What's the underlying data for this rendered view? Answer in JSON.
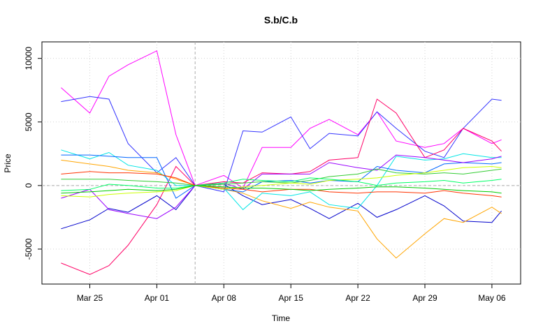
{
  "chart_data": {
    "type": "line",
    "title": "S.b/C.b",
    "x_label": "Time",
    "y_label": "Price",
    "x": [
      "Mar 22",
      "Mar 25",
      "Mar 27",
      "Mar 29",
      "Apr 01",
      "Apr 03",
      "Apr 05",
      "Apr 08",
      "Apr 10",
      "Apr 12",
      "Apr 15",
      "Apr 17",
      "Apr 19",
      "Apr 22",
      "Apr 24",
      "Apr 26",
      "Apr 29",
      "May 01",
      "May 03",
      "May 06",
      "May 07"
    ],
    "xlim": [
      "Mar 20",
      "May 09"
    ],
    "xticks": [
      "Mar 25",
      "Apr 01",
      "Apr 08",
      "Apr 15",
      "Apr 22",
      "Apr 29",
      "May 06"
    ],
    "ylim": [
      -7750,
      11300
    ],
    "yticks": [
      -5000,
      0,
      5000,
      10000
    ],
    "grid": true,
    "vline": "Apr 05",
    "hline": 0,
    "series": [
      {
        "color": "#ff00ff",
        "values": [
          7700,
          5700,
          8600,
          9500,
          10600,
          4000,
          0,
          800,
          -200,
          3000,
          3000,
          4500,
          5200,
          4000,
          5800,
          3500,
          3000,
          3300,
          4500,
          3300,
          3600
        ]
      },
      {
        "color": "#3333ff",
        "values": [
          6600,
          7000,
          6800,
          3300,
          1000,
          2200,
          0,
          -500,
          4300,
          4200,
          5400,
          2900,
          4100,
          3900,
          5800,
          4500,
          2700,
          2200,
          4500,
          6800,
          6700
        ]
      },
      {
        "color": "#ff0066",
        "values": [
          -6100,
          -7000,
          -6300,
          -4700,
          -1500,
          1500,
          0,
          300,
          200,
          1000,
          900,
          1100,
          2000,
          2200,
          6800,
          5700,
          2200,
          2800,
          4500,
          3500,
          2700
        ]
      },
      {
        "color": "#0000cc",
        "values": [
          -3400,
          -2700,
          -1800,
          -2100,
          -800,
          -1900,
          0,
          100,
          -800,
          -1500,
          -1100,
          -1800,
          -2600,
          -1400,
          -2500,
          -1900,
          -800,
          -1600,
          -2800,
          -2900,
          -2000
        ]
      },
      {
        "color": "#ffa500",
        "values": [
          2000,
          1700,
          1500,
          1200,
          1000,
          500,
          0,
          -300,
          -600,
          -1200,
          -1800,
          -1300,
          -1700,
          -2000,
          -4200,
          -5700,
          -3800,
          -2600,
          -2900,
          -1700,
          -2200
        ]
      },
      {
        "color": "#00e5e5",
        "values": [
          2800,
          2100,
          2600,
          1600,
          1200,
          0,
          0,
          -200,
          -1900,
          -600,
          -800,
          -500,
          -1500,
          -1800,
          0,
          2300,
          2000,
          2100,
          2500,
          2200,
          2200
        ]
      },
      {
        "color": "#0066ff",
        "values": [
          2400,
          2400,
          2300,
          2200,
          2200,
          -1000,
          0,
          -300,
          -500,
          300,
          400,
          200,
          400,
          300,
          1500,
          1200,
          1000,
          1700,
          1800,
          1700,
          1800
        ]
      },
      {
        "color": "#9900ff",
        "values": [
          -1000,
          -300,
          -1900,
          -2200,
          -2600,
          -1700,
          0,
          200,
          -300,
          900,
          900,
          900,
          1800,
          1400,
          1200,
          2400,
          2200,
          2000,
          1800,
          2100,
          2300
        ]
      },
      {
        "color": "#33cc33",
        "values": [
          500,
          500,
          500,
          400,
          300,
          200,
          0,
          100,
          200,
          300,
          200,
          400,
          700,
          900,
          1300,
          1000,
          900,
          1000,
          900,
          1200,
          1300
        ]
      },
      {
        "color": "#ff3300",
        "values": [
          900,
          1100,
          1000,
          1000,
          900,
          600,
          0,
          -200,
          -300,
          -500,
          -300,
          -300,
          -500,
          -600,
          -500,
          -500,
          -600,
          -400,
          -600,
          -800,
          -900
        ]
      },
      {
        "color": "#ccff00",
        "values": [
          -800,
          -900,
          -700,
          -600,
          -500,
          -400,
          0,
          -300,
          -100,
          0,
          200,
          100,
          400,
          500,
          600,
          800,
          1000,
          1200,
          1400,
          1500,
          1400
        ]
      },
      {
        "color": "#00ff66",
        "values": [
          -400,
          -300,
          100,
          0,
          -200,
          -200,
          0,
          200,
          500,
          400,
          300,
          600,
          500,
          300,
          0,
          200,
          300,
          400,
          200,
          400,
          500
        ]
      },
      {
        "color": "#00cc00",
        "values": [
          -600,
          -500,
          -400,
          -300,
          -400,
          -300,
          0,
          -100,
          -200,
          -200,
          -300,
          -400,
          -300,
          -200,
          -100,
          -100,
          -200,
          -300,
          -400,
          -500,
          -600
        ]
      }
    ]
  }
}
